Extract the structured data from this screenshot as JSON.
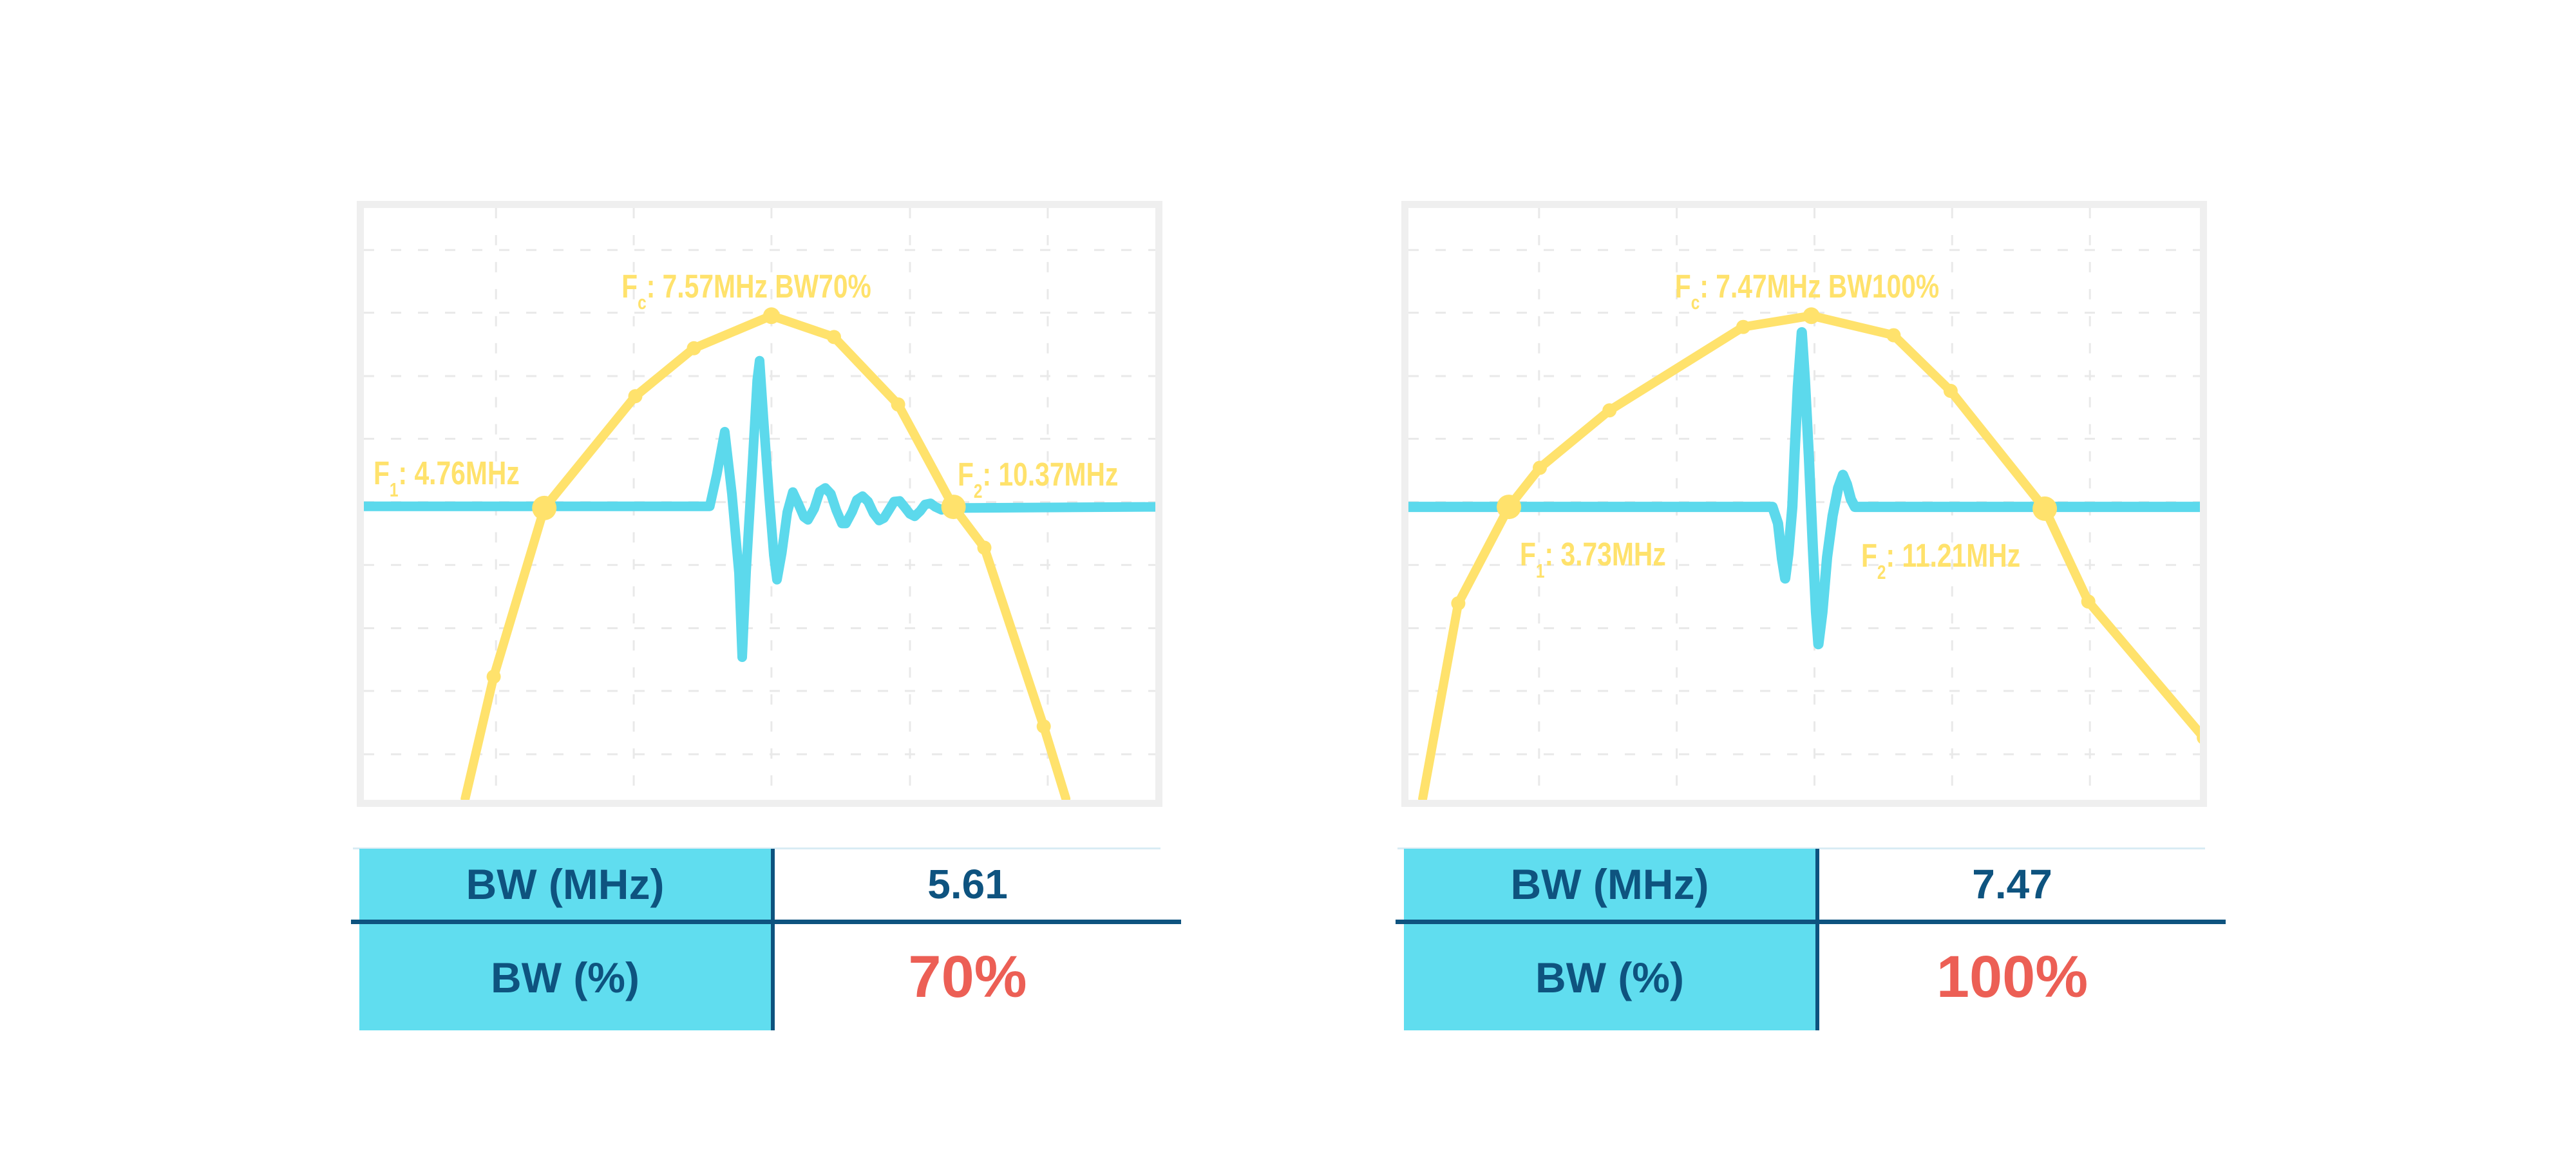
{
  "colors": {
    "spectrum_yellow": "#FFE26C",
    "pulse_cyan": "#5CD9EC",
    "table_header_cyan": "#60DDEF",
    "navy": "#0E537F",
    "value_red": "#EC5F55",
    "grid_gray": "#E9E9E9",
    "plot_border_gray": "#EFEFEF",
    "table_topline_blue": "#D9ECF4"
  },
  "chart_data": [
    {
      "type": "line",
      "title": "F_c: 7.57MHz BW70%",
      "annotations": {
        "fc": {
          "pre": "F",
          "sub": "c",
          "post": ": 7.57MHz BW70%"
        },
        "f1": {
          "pre": "F",
          "sub": "1",
          "post": ": 4.76MHz"
        },
        "f2": {
          "pre": "F",
          "sub": "2",
          "post": ": 10.37MHz"
        }
      },
      "values": {
        "fc_mhz": 7.57,
        "f1_mhz": 4.76,
        "f2_mhz": 10.37,
        "bw_mhz": 5.61,
        "bw_pct": 70
      },
      "table": {
        "rows": [
          {
            "label": "BW (MHz)",
            "value": "5.61"
          },
          {
            "label": "BW (%)",
            "value": "70%"
          }
        ]
      },
      "grid": {
        "color": "#E9E9E9",
        "dash": "16 26",
        "v": [
          0.167,
          0.341,
          0.515,
          0.69,
          0.864
        ],
        "h": [
          0.071,
          0.177,
          0.284,
          0.39,
          0.497,
          0.603,
          0.71,
          0.816,
          0.923
        ]
      },
      "series": [
        {
          "name": "pulse-waveform",
          "color": "#5CD9EC",
          "width": 15,
          "points": [
            [
              0.0,
              0.504
            ],
            [
              0.437,
              0.504
            ],
            [
              0.446,
              0.45
            ],
            [
              0.456,
              0.378
            ],
            [
              0.465,
              0.483
            ],
            [
              0.474,
              0.617
            ],
            [
              0.478,
              0.759
            ],
            [
              0.483,
              0.613
            ],
            [
              0.491,
              0.433
            ],
            [
              0.497,
              0.291
            ],
            [
              0.5,
              0.258
            ],
            [
              0.505,
              0.357
            ],
            [
              0.512,
              0.487
            ],
            [
              0.518,
              0.587
            ],
            [
              0.522,
              0.628
            ],
            [
              0.528,
              0.583
            ],
            [
              0.535,
              0.514
            ],
            [
              0.542,
              0.48
            ],
            [
              0.549,
              0.5
            ],
            [
              0.556,
              0.522
            ],
            [
              0.561,
              0.527
            ],
            [
              0.569,
              0.508
            ],
            [
              0.576,
              0.479
            ],
            [
              0.583,
              0.473
            ],
            [
              0.59,
              0.483
            ],
            [
              0.597,
              0.511
            ],
            [
              0.604,
              0.533
            ],
            [
              0.609,
              0.533
            ],
            [
              0.617,
              0.513
            ],
            [
              0.623,
              0.493
            ],
            [
              0.63,
              0.487
            ],
            [
              0.637,
              0.496
            ],
            [
              0.644,
              0.516
            ],
            [
              0.651,
              0.528
            ],
            [
              0.657,
              0.524
            ],
            [
              0.664,
              0.509
            ],
            [
              0.67,
              0.496
            ],
            [
              0.677,
              0.495
            ],
            [
              0.683,
              0.505
            ],
            [
              0.69,
              0.517
            ],
            [
              0.696,
              0.521
            ],
            [
              0.703,
              0.512
            ],
            [
              0.709,
              0.501
            ],
            [
              0.716,
              0.499
            ],
            [
              0.722,
              0.505
            ],
            [
              0.73,
              0.51
            ],
            [
              0.738,
              0.507
            ],
            [
              1.0,
              0.505
            ]
          ]
        },
        {
          "name": "spectrum",
          "color": "#FFE26C",
          "width": 14,
          "points": [
            [
              0.128,
              0.998
            ],
            [
              0.164,
              0.792
            ],
            [
              0.228,
              0.507
            ],
            [
              0.343,
              0.318
            ],
            [
              0.417,
              0.237
            ],
            [
              0.515,
              0.182
            ],
            [
              0.594,
              0.218
            ],
            [
              0.675,
              0.332
            ],
            [
              0.745,
              0.505
            ],
            [
              0.784,
              0.574
            ],
            [
              0.859,
              0.876
            ],
            [
              0.887,
              0.998
            ]
          ],
          "markers": {
            "normal": [
              1,
              3,
              4,
              6,
              7,
              9,
              10
            ],
            "big": [
              2,
              8
            ],
            "peak": [
              5
            ]
          }
        }
      ]
    },
    {
      "type": "line",
      "title": "F_c: 7.47MHz BW100%",
      "annotations": {
        "fc": {
          "pre": "F",
          "sub": "c",
          "post": ": 7.47MHz BW100%"
        },
        "f1": {
          "pre": "F",
          "sub": "1",
          "post": ": 3.73MHz"
        },
        "f2": {
          "pre": "F",
          "sub": "2",
          "post": ": 11.21MHz"
        }
      },
      "values": {
        "fc_mhz": 7.47,
        "f1_mhz": 3.73,
        "f2_mhz": 11.21,
        "bw_mhz": 7.47,
        "bw_pct": 100
      },
      "table": {
        "rows": [
          {
            "label": "BW (MHz)",
            "value": "7.47"
          },
          {
            "label": "BW (%)",
            "value": "100%"
          }
        ]
      },
      "grid": {
        "color": "#E9E9E9",
        "dash": "16 26",
        "v": [
          0.165,
          0.339,
          0.513,
          0.687,
          0.861
        ],
        "h": [
          0.071,
          0.177,
          0.284,
          0.39,
          0.497,
          0.603,
          0.71,
          0.816,
          0.923
        ]
      },
      "series": [
        {
          "name": "pulse-waveform",
          "color": "#5CD9EC",
          "width": 16,
          "points": [
            [
              0.0,
              0.505
            ],
            [
              0.46,
              0.505
            ],
            [
              0.467,
              0.533
            ],
            [
              0.472,
              0.593
            ],
            [
              0.476,
              0.626
            ],
            [
              0.48,
              0.585
            ],
            [
              0.485,
              0.505
            ],
            [
              0.488,
              0.411
            ],
            [
              0.492,
              0.302
            ],
            [
              0.497,
              0.21
            ],
            [
              0.501,
              0.291
            ],
            [
              0.506,
              0.422
            ],
            [
              0.511,
              0.574
            ],
            [
              0.515,
              0.683
            ],
            [
              0.518,
              0.737
            ],
            [
              0.523,
              0.683
            ],
            [
              0.529,
              0.59
            ],
            [
              0.536,
              0.52
            ],
            [
              0.543,
              0.473
            ],
            [
              0.549,
              0.451
            ],
            [
              0.554,
              0.467
            ],
            [
              0.559,
              0.492
            ],
            [
              0.564,
              0.505
            ],
            [
              1.0,
              0.505
            ]
          ]
        },
        {
          "name": "spectrum",
          "color": "#FFE26C",
          "width": 14,
          "points": [
            [
              0.018,
              0.998
            ],
            [
              0.063,
              0.668
            ],
            [
              0.127,
              0.505
            ],
            [
              0.166,
              0.439
            ],
            [
              0.254,
              0.342
            ],
            [
              0.423,
              0.201
            ],
            [
              0.509,
              0.182
            ],
            [
              0.613,
              0.215
            ],
            [
              0.685,
              0.309
            ],
            [
              0.804,
              0.508
            ],
            [
              0.859,
              0.665
            ],
            [
              1.005,
              0.895
            ]
          ],
          "markers": {
            "normal": [
              1,
              3,
              4,
              5,
              7,
              8,
              10,
              11
            ],
            "big": [
              2,
              9
            ],
            "peak": [
              6
            ]
          }
        }
      ]
    }
  ]
}
